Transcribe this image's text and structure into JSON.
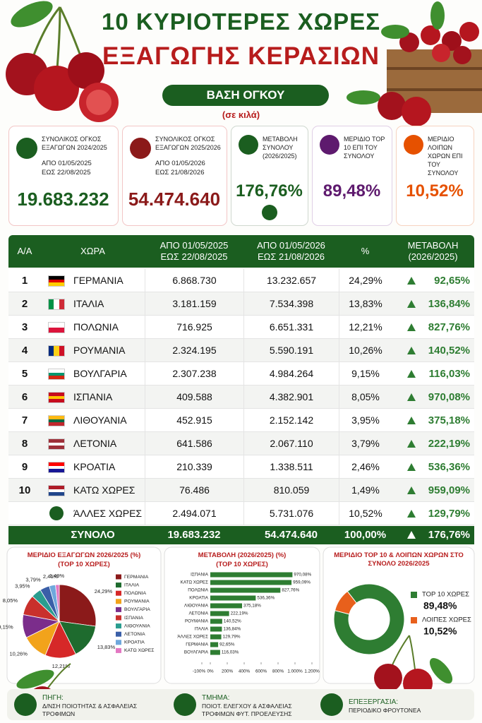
{
  "header": {
    "title_line1": "10 ΚΥΡΙΟΤΕΡΕΣ ΧΩΡΕΣ",
    "title_line2": "ΕΞΑΓΩΓΗΣ ΚΕΡΑΣΙΩΝ",
    "badge": "ΒΑΣΗ ΟΓΚΟΥ",
    "unit": "(σε κιλά)"
  },
  "kpis": [
    {
      "label": "ΣΥΝΟΛΙΚΟΣ ΟΓΚΟΣ ΕΞΑΓΩΓΩΝ 2024/2025",
      "period_from": "ΑΠΟ 01/05/2025",
      "period_to": "ΕΩΣ 22/08/2025",
      "value": "19.683.232"
    },
    {
      "label": "ΣΥΝΟΛΙΚΟΣ ΟΓΚΟΣ ΕΞΑΓΩΓΩΝ 2025/2026",
      "period_from": "ΑΠΟ 01/05/2026",
      "period_to": "ΕΩΣ 21/08/2026",
      "value": "54.474.640"
    },
    {
      "label": "ΜΕΤΑΒΟΛΗ ΣΥΝΟΛΟΥ (2026/2025)",
      "value": "176,76%"
    },
    {
      "label": "ΜΕΡΙΔΙΟ TOP 10 ΕΠΙ ΤΟΥ ΣΥΝΟΛΟΥ",
      "value": "89,48%"
    },
    {
      "label": "ΜΕΡΙΔΙΟ ΛΟΙΠΩΝ ΧΩΡΩΝ ΕΠΙ ΤΟΥ ΣΥΝΟΛΟΥ",
      "value": "10,52%"
    }
  ],
  "table": {
    "headers": [
      "Α/Α",
      "ΧΩΡΑ",
      "ΑΠΟ 01/05/2025 ΕΩΣ 22/08/2025",
      "ΑΠΟ 01/05/2026 ΕΩΣ 21/08/2026",
      "%",
      "ΜΕΤΑΒΟΛΗ (2026/2025)"
    ],
    "rows": [
      [
        "1",
        "ΓΕΡΜΑΝΙΑ",
        "6.868.730",
        "13.232.657",
        "24,29%",
        "92,65%"
      ],
      [
        "2",
        "ΙΤΑΛΙΑ",
        "3.181.159",
        "7.534.398",
        "13,83%",
        "136,84%"
      ],
      [
        "3",
        "ΠΟΛΩΝΙΑ",
        "716.925",
        "6.651.331",
        "12,21%",
        "827,76%"
      ],
      [
        "4",
        "ΡΟΥΜΑΝΙΑ",
        "2.324.195",
        "5.590.191",
        "10,26%",
        "140,52%"
      ],
      [
        "5",
        "ΒΟΥΛΓΑΡΙΑ",
        "2.307.238",
        "4.984.264",
        "9,15%",
        "116,03%"
      ],
      [
        "6",
        "ΙΣΠΑΝΙΑ",
        "409.588",
        "4.382.901",
        "8,05%",
        "970,08%"
      ],
      [
        "7",
        "ΛΙΘΟΥΑΝΙΑ",
        "452.915",
        "2.152.142",
        "3,95%",
        "375,18%"
      ],
      [
        "8",
        "ΛΕΤΟΝΙΑ",
        "641.586",
        "2.067.110",
        "3,79%",
        "222,19%"
      ],
      [
        "9",
        "ΚΡΟΑΤΙΑ",
        "210.339",
        "1.338.511",
        "2,46%",
        "536,36%"
      ],
      [
        "10",
        "ΚΑΤΩ ΧΩΡΕΣ",
        "76.486",
        "810.059",
        "1,49%",
        "959,09%"
      ]
    ],
    "others": [
      "ΆΛΛΕΣ ΧΩΡΕΣ",
      "2.494.071",
      "5.731.076",
      "10,52%",
      "129,79%"
    ],
    "total": [
      "ΣΥΝΟΛΟ",
      "19.683.232",
      "54.474.640",
      "100,00%",
      "176,76%"
    ]
  },
  "chart_data": [
    {
      "type": "pie",
      "title": "ΜΕΡΙΔΙΟ ΕΞΑΓΩΓΩΝ 2026/2025 (%)",
      "subtitle": "(TOP 10 ΧΩΡΕΣ)",
      "categories": [
        "ΓΕΡΜΑΝΙΑ",
        "ΙΤΑΛΙΑ",
        "ΠΟΛΩΝΙΑ",
        "ΡΟΥΜΑΝΙΑ",
        "ΒΟΥΛΓΑΡΙΑ",
        "ΙΣΠΑΝΙΑ",
        "ΛΙΘΟΥΑΝΙΑ",
        "ΛΕΤΟΝΙΑ",
        "ΚΡΟΑΤΙΑ",
        "ΚΑΤΩ ΧΩΡΕΣ"
      ],
      "values": [
        24.29,
        13.83,
        12.21,
        10.26,
        9.15,
        8.05,
        3.95,
        3.79,
        2.46,
        1.49
      ],
      "value_labels": [
        "24,29%",
        "13,83%",
        "12,21%",
        "10,26%",
        "9,15%",
        "8,05%",
        "3,95%",
        "3,79%",
        "2,46%",
        "1,49%"
      ],
      "colors": [
        "#8b1a1a",
        "#1e6b2e",
        "#d62828",
        "#f2a31b",
        "#7b2d8b",
        "#c9302c",
        "#2a9d8f",
        "#3a5fa8",
        "#6fa8dc",
        "#e377c2"
      ]
    },
    {
      "type": "bar",
      "title": "ΜΕΤΑΒΟΛΗ (2026/2025) (%)",
      "subtitle": "(TOP 10 ΧΩΡΕΣ)",
      "categories": [
        "ΙΣΠΑΝΙΑ",
        "ΚΑΤΩ ΧΩΡΕΣ",
        "ΠΟΛΩΝΙΑ",
        "ΚΡΟΑΤΙΑ",
        "ΛΙΘΟΥΑΝΙΑ",
        "ΛΕΤΟΝΙΑ",
        "ΡΟΥΜΑΝΙΑ",
        "ΙΤΑΛΙΑ",
        "ΆΛΛΕΣ ΧΩΡΕΣ",
        "ΓΕΡΜΑΝΙΑ",
        "ΒΟΥΛΓΑΡΙΑ"
      ],
      "values": [
        970.08,
        959.09,
        827.76,
        536.36,
        375.18,
        222.19,
        140.52,
        136.84,
        129.79,
        92.65,
        116.03
      ],
      "value_labels": [
        "970,08%",
        "959,09%",
        "827,76%",
        "536,36%",
        "375,18%",
        "222,19%",
        "140,52%",
        "136,84%",
        "129,79%",
        "92,65%",
        "116,03%"
      ],
      "color": "#2e7d32",
      "xlim": [
        -100,
        1200
      ],
      "xticks": [
        {
          "value": -100,
          "label": "-100%"
        },
        {
          "value": 0,
          "label": "0%"
        },
        {
          "value": 200,
          "label": "200%"
        },
        {
          "value": 400,
          "label": "400%"
        },
        {
          "value": 600,
          "label": "600%"
        },
        {
          "value": 800,
          "label": "800%"
        },
        {
          "value": 1000,
          "label": "1.000%"
        },
        {
          "value": 1200,
          "label": "1.200%"
        }
      ]
    },
    {
      "type": "donut",
      "title": "ΜΕΡΙΔΙΟ TOP 10 & ΛΟΙΠΩΝ ΧΩΡΩΝ ΣΤΟ ΣΥΝΟΛΟ 2026/2025",
      "categories": [
        "TOP 10 ΧΩΡΕΣ",
        "ΛΟΙΠΕΣ ΧΩΡΕΣ"
      ],
      "values": [
        89.48,
        10.52
      ],
      "value_labels": [
        "89,48%",
        "10,52%"
      ],
      "colors": [
        "#2e7d32",
        "#e8601c"
      ]
    }
  ],
  "footer": [
    {
      "label": "ΠΗΓΗ:",
      "text": "Δ/ΝΣΗ ΠΟΙΟΤΗΤΑΣ & ΑΣΦΑΛΕΙΑΣ ΤΡΟΦΙΜΩΝ"
    },
    {
      "label": "ΤΜΗΜΑ:",
      "text": "ΠΟΙΟΤ. ΕΛΕΓΧΟΥ & ΑΣΦΑΛΕΙΑΣ ΤΡΟΦΙΜΩΝ ΦΥΤ. ΠΡΟΕΛΕΥΣΗΣ"
    },
    {
      "label": "ΕΠΕΞΕΡΓΑΣΙΑ:",
      "text": "ΠΕΡΙΟΔΙΚΟ ΦΡΟΥΤΟΝΕΑ"
    }
  ]
}
